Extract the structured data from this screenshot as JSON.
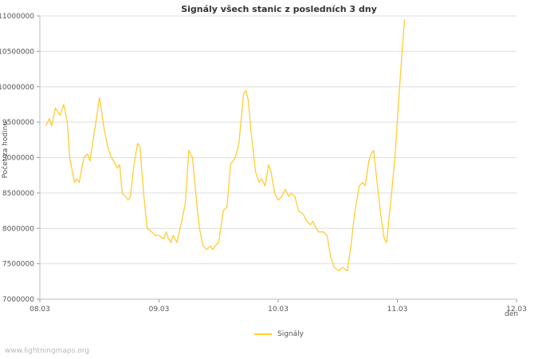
{
  "page": {
    "watermark": "www.lightningmaps.org"
  },
  "chart_data": {
    "type": "line",
    "title": "Signály všech stanic z posledních 3 dny",
    "xlabel": "den",
    "ylabel": "Počet za hodinu",
    "xlim": [
      0,
      4
    ],
    "ylim": [
      7000000,
      11000000
    ],
    "grid": "horizontal",
    "x_ticks": [
      {
        "pos": 0,
        "label": "08.03"
      },
      {
        "pos": 1,
        "label": "09.03"
      },
      {
        "pos": 2,
        "label": "10.03"
      },
      {
        "pos": 3,
        "label": "11.03"
      },
      {
        "pos": 4,
        "label": "12.03"
      }
    ],
    "y_ticks": [
      {
        "pos": 7000000,
        "label": "7000000"
      },
      {
        "pos": 7500000,
        "label": "7500000"
      },
      {
        "pos": 8000000,
        "label": "8000000"
      },
      {
        "pos": 8500000,
        "label": "8500000"
      },
      {
        "pos": 9000000,
        "label": "9000000"
      },
      {
        "pos": 9500000,
        "label": "9500000"
      },
      {
        "pos": 10000000,
        "label": "10000000"
      },
      {
        "pos": 10500000,
        "label": "10500000"
      },
      {
        "pos": 11000000,
        "label": "11000000"
      }
    ],
    "legend": {
      "position": "bottom-center",
      "entries": [
        {
          "label": "Signály",
          "color": "#ffcc33"
        }
      ]
    },
    "series": [
      {
        "name": "Signály",
        "color": "#ffcc33",
        "points": [
          [
            0.05,
            9450000
          ],
          [
            0.08,
            9550000
          ],
          [
            0.1,
            9450000
          ],
          [
            0.13,
            9700000
          ],
          [
            0.17,
            9600000
          ],
          [
            0.2,
            9750000
          ],
          [
            0.23,
            9500000
          ],
          [
            0.25,
            9000000
          ],
          [
            0.29,
            8650000
          ],
          [
            0.31,
            8700000
          ],
          [
            0.33,
            8650000
          ],
          [
            0.37,
            9000000
          ],
          [
            0.4,
            9050000
          ],
          [
            0.42,
            8950000
          ],
          [
            0.47,
            9500000
          ],
          [
            0.5,
            9850000
          ],
          [
            0.54,
            9400000
          ],
          [
            0.57,
            9150000
          ],
          [
            0.6,
            9000000
          ],
          [
            0.62,
            8950000
          ],
          [
            0.65,
            8850000
          ],
          [
            0.67,
            8900000
          ],
          [
            0.69,
            8500000
          ],
          [
            0.72,
            8450000
          ],
          [
            0.74,
            8400000
          ],
          [
            0.76,
            8450000
          ],
          [
            0.79,
            8900000
          ],
          [
            0.82,
            9200000
          ],
          [
            0.84,
            9150000
          ],
          [
            0.87,
            8500000
          ],
          [
            0.9,
            8000000
          ],
          [
            0.94,
            7950000
          ],
          [
            0.97,
            7900000
          ],
          [
            1.0,
            7900000
          ],
          [
            1.04,
            7850000
          ],
          [
            1.06,
            7950000
          ],
          [
            1.08,
            7850000
          ],
          [
            1.1,
            7800000
          ],
          [
            1.12,
            7900000
          ],
          [
            1.15,
            7800000
          ],
          [
            1.19,
            8100000
          ],
          [
            1.22,
            8350000
          ],
          [
            1.25,
            9100000
          ],
          [
            1.28,
            9000000
          ],
          [
            1.32,
            8300000
          ],
          [
            1.34,
            8000000
          ],
          [
            1.37,
            7750000
          ],
          [
            1.4,
            7700000
          ],
          [
            1.43,
            7750000
          ],
          [
            1.45,
            7700000
          ],
          [
            1.47,
            7750000
          ],
          [
            1.5,
            7800000
          ],
          [
            1.54,
            8250000
          ],
          [
            1.57,
            8300000
          ],
          [
            1.6,
            8900000
          ],
          [
            1.64,
            9000000
          ],
          [
            1.67,
            9200000
          ],
          [
            1.71,
            9900000
          ],
          [
            1.73,
            9950000
          ],
          [
            1.75,
            9800000
          ],
          [
            1.77,
            9400000
          ],
          [
            1.81,
            8800000
          ],
          [
            1.84,
            8650000
          ],
          [
            1.86,
            8700000
          ],
          [
            1.89,
            8600000
          ],
          [
            1.92,
            8900000
          ],
          [
            1.94,
            8800000
          ],
          [
            1.97,
            8500000
          ],
          [
            2.0,
            8400000
          ],
          [
            2.03,
            8450000
          ],
          [
            2.06,
            8550000
          ],
          [
            2.09,
            8450000
          ],
          [
            2.11,
            8500000
          ],
          [
            2.14,
            8450000
          ],
          [
            2.17,
            8250000
          ],
          [
            2.21,
            8200000
          ],
          [
            2.24,
            8100000
          ],
          [
            2.27,
            8050000
          ],
          [
            2.29,
            8100000
          ],
          [
            2.32,
            8000000
          ],
          [
            2.34,
            7950000
          ],
          [
            2.38,
            7950000
          ],
          [
            2.41,
            7900000
          ],
          [
            2.44,
            7600000
          ],
          [
            2.47,
            7450000
          ],
          [
            2.51,
            7400000
          ],
          [
            2.54,
            7450000
          ],
          [
            2.58,
            7400000
          ],
          [
            2.61,
            7750000
          ],
          [
            2.64,
            8200000
          ],
          [
            2.68,
            8600000
          ],
          [
            2.71,
            8650000
          ],
          [
            2.73,
            8600000
          ],
          [
            2.76,
            8950000
          ],
          [
            2.78,
            9050000
          ],
          [
            2.8,
            9100000
          ],
          [
            2.82,
            8800000
          ],
          [
            2.86,
            8200000
          ],
          [
            2.89,
            7850000
          ],
          [
            2.91,
            7800000
          ],
          [
            2.94,
            8300000
          ],
          [
            2.98,
            9000000
          ],
          [
            3.01,
            9800000
          ],
          [
            3.04,
            10500000
          ],
          [
            3.06,
            10950000
          ]
        ]
      }
    ]
  }
}
